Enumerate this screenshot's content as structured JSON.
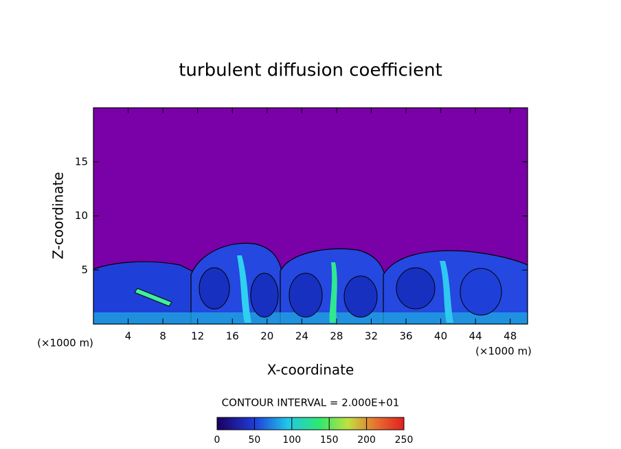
{
  "chart_data": {
    "type": "contour",
    "title": "turbulent diffusion coefficient",
    "x_label": "X-coordinate",
    "y_label": "Z-coordinate",
    "x_unit_label": "(×1000 m)",
    "xlim": [
      0,
      50
    ],
    "xticks": [
      4,
      8,
      12,
      16,
      20,
      24,
      28,
      32,
      36,
      40,
      44,
      48
    ],
    "ylim": [
      0,
      20
    ],
    "yticks": [
      5,
      10,
      15
    ],
    "contour_interval_label": "CONTOUR INTERVAL = 2.000E+01",
    "colorbar_lim": [
      0,
      250
    ],
    "colorbar_ticks": [
      0,
      50,
      100,
      150,
      200,
      250
    ]
  }
}
